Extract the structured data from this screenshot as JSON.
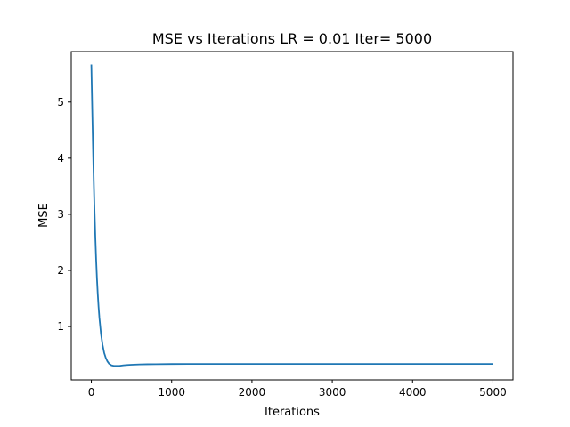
{
  "chart_data": {
    "type": "line",
    "title": "MSE vs Iterations LR = 0.01 Iter= 5000",
    "xlabel": "Iterations",
    "ylabel": "MSE",
    "xlim": [
      -250,
      5250
    ],
    "ylim": [
      0.05,
      5.9
    ],
    "x_ticks": [
      0,
      1000,
      2000,
      3000,
      4000,
      5000
    ],
    "y_ticks": [
      1,
      2,
      3,
      4,
      5
    ],
    "grid": false,
    "line_color": "#1f77b4",
    "series": [
      {
        "x": [
          0,
          10,
          20,
          30,
          40,
          50,
          60,
          70,
          80,
          90,
          100,
          120,
          140,
          160,
          180,
          200,
          220,
          250,
          280,
          300,
          320,
          350,
          400,
          450,
          500,
          600,
          700,
          800,
          1000,
          1200,
          1500,
          2000,
          2500,
          3000,
          3500,
          4000,
          4500,
          5000
        ],
        "values": [
          5.67,
          4.95,
          4.25,
          3.6,
          3.05,
          2.58,
          2.18,
          1.85,
          1.58,
          1.35,
          1.16,
          0.87,
          0.67,
          0.53,
          0.44,
          0.38,
          0.34,
          0.31,
          0.3,
          0.3,
          0.3,
          0.3,
          0.31,
          0.315,
          0.32,
          0.325,
          0.328,
          0.33,
          0.332,
          0.333,
          0.333,
          0.333,
          0.333,
          0.333,
          0.333,
          0.333,
          0.333,
          0.333
        ]
      }
    ]
  }
}
